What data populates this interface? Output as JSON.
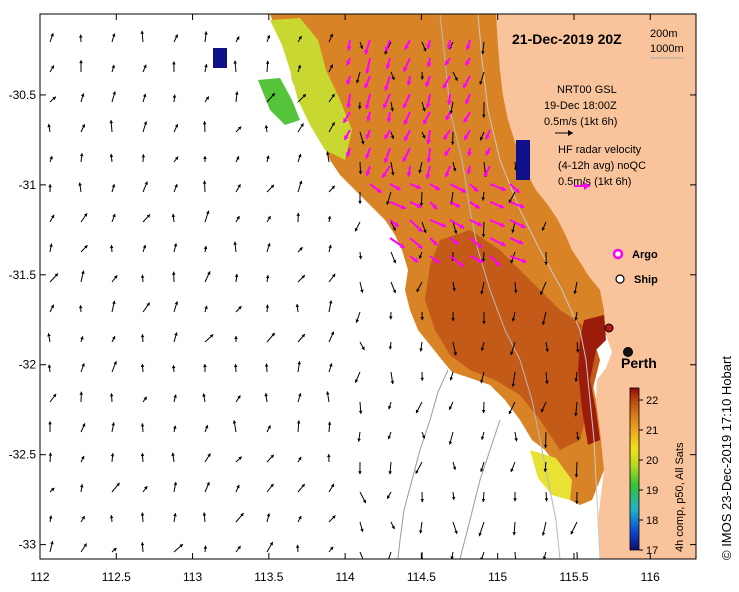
{
  "title": "21-Dec-2019 20Z",
  "depth_contours": [
    "200m",
    "1000m"
  ],
  "model_legend": {
    "line1": "NRT00 GSL",
    "line2": "19-Dec 18:00Z",
    "line3": "0.5m/s (1kt 6h)"
  },
  "radar_legend": {
    "line1": "HF radar velocity",
    "line2": "(4-12h avg) noQC",
    "line3": "0.5m/s (1kt 6h)"
  },
  "markers": {
    "argo": "Argo",
    "ship": "Ship"
  },
  "city": "Perth",
  "credit": "© IMOS 23-Dec-2019 17:10 Hobart",
  "colorbar": {
    "label": "4h comp, p50, All Sats",
    "ticks": [
      "17",
      "18",
      "19",
      "20",
      "21",
      "22"
    ],
    "min": 17,
    "max": 22.4
  },
  "axes": {
    "x_ticks": [
      "112",
      "112.5",
      "113",
      "113.5",
      "114",
      "114.5",
      "115",
      "115.5",
      "116"
    ],
    "y_ticks": [
      "-30.5",
      "-31",
      "-31.5",
      "-32",
      "-32.5",
      "-33"
    ],
    "xlim": [
      112,
      116.3
    ],
    "ylim": [
      -33.08,
      -30.05
    ]
  },
  "colors": {
    "land": "#f9c49b",
    "argo": "#ff00ff",
    "radar_arrow": "#ff00ff",
    "model_arrow": "#000000"
  }
}
